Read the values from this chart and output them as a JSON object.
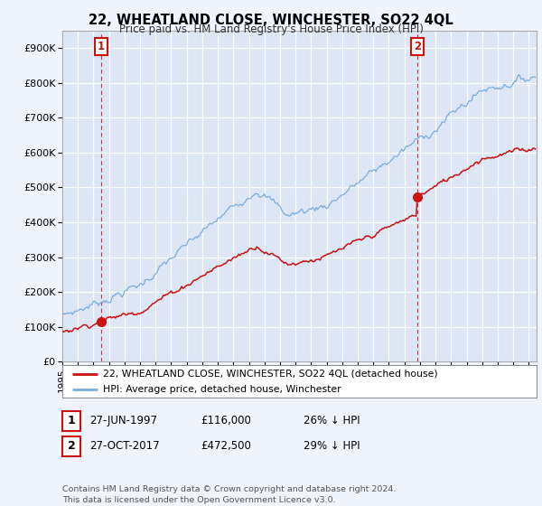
{
  "title": "22, WHEATLAND CLOSE, WINCHESTER, SO22 4QL",
  "subtitle": "Price paid vs. HM Land Registry's House Price Index (HPI)",
  "background_color": "#f0f4ff",
  "plot_bg_color": "#dce6f5",
  "grid_color": "#ffffff",
  "hpi_color": "#7aaddd",
  "price_color": "#cc1111",
  "ylim": [
    0,
    950000
  ],
  "yticks": [
    0,
    100000,
    200000,
    300000,
    400000,
    500000,
    600000,
    700000,
    800000,
    900000
  ],
  "x_start_year": 1995.0,
  "x_end_year": 2025.5,
  "purchase1_date": 1997.48,
  "purchase1_price": 116000,
  "purchase2_date": 2017.82,
  "purchase2_price": 472500,
  "legend_line1": "22, WHEATLAND CLOSE, WINCHESTER, SO22 4QL (detached house)",
  "legend_line2": "HPI: Average price, detached house, Winchester",
  "table_row1": [
    "1",
    "27-JUN-1997",
    "£116,000",
    "26% ↓ HPI"
  ],
  "table_row2": [
    "2",
    "27-OCT-2017",
    "£472,500",
    "29% ↓ HPI"
  ],
  "footnote": "Contains HM Land Registry data © Crown copyright and database right 2024.\nThis data is licensed under the Open Government Licence v3.0."
}
